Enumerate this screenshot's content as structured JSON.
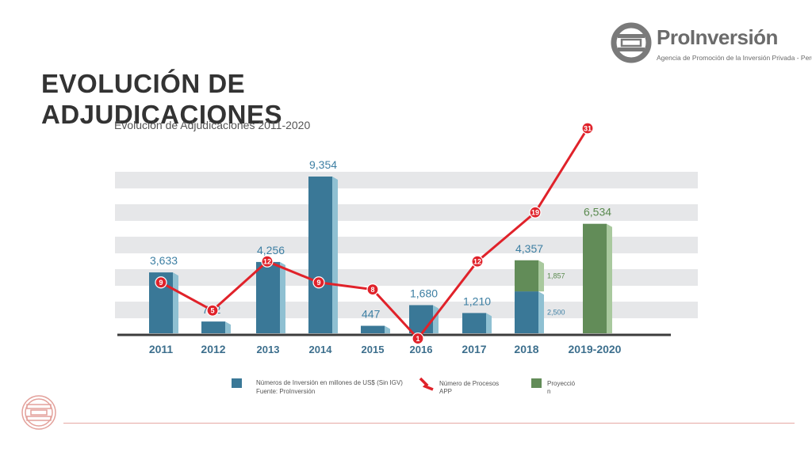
{
  "slide": {
    "title_line1": "EVOLUCIÓN DE",
    "title_line2": "ADJUDICACIONES",
    "subtitle": "Evolución de Adjudicaciones 2011-2020"
  },
  "logo": {
    "name": "ProInversión",
    "tagline": "Agencia de Promoción de la Inversión Privada - Perú"
  },
  "colors": {
    "bar_blue": "#3a7897",
    "bar_blue_side": "#8fc0d2",
    "bar_green": "#628c58",
    "bar_green_side": "#a9c99e",
    "line_red": "#e0222a",
    "band_gray": "#e6e7e9",
    "value_blue": "#3d7fa3",
    "value_green": "#5a8a4f"
  },
  "chart_data": {
    "type": "bar",
    "title": "Evolución de Adjudicaciones 2011-2020",
    "categories": [
      "2011",
      "2012",
      "2013",
      "2014",
      "2015",
      "2016",
      "2017",
      "2018",
      "2019-2020"
    ],
    "series": [
      {
        "name": "Números de Inversión en millones de US$ (Sin IGV)",
        "type": "bar",
        "values": [
          3633,
          702,
          4256,
          9354,
          447,
          1680,
          1210,
          2500,
          null
        ],
        "labels": [
          "3,633",
          "702",
          "4,256",
          "9,354",
          "447",
          "1,680",
          "1,210",
          "2,500",
          ""
        ]
      },
      {
        "name": "Proyección",
        "type": "bar",
        "stacked": true,
        "values": [
          null,
          null,
          null,
          null,
          null,
          null,
          null,
          1857,
          6534
        ],
        "labels": [
          "",
          "",
          "",
          "",
          "",
          "",
          "",
          "1,857",
          "6,534"
        ]
      },
      {
        "name": "Número de Procesos APP",
        "type": "line",
        "values": [
          9,
          5,
          12,
          9,
          8,
          1,
          12,
          19,
          31
        ],
        "labels": [
          "9",
          "5",
          "12",
          "9",
          "8",
          "1",
          "12",
          "19",
          "31"
        ]
      }
    ],
    "totals": {
      "2018": "4,357"
    },
    "bar_ylim": [
      0,
      10000
    ],
    "line_ylim": [
      0,
      34
    ],
    "grid": "horizontal bands",
    "legend_position": "bottom",
    "source": "Fuente: ProInversión"
  }
}
